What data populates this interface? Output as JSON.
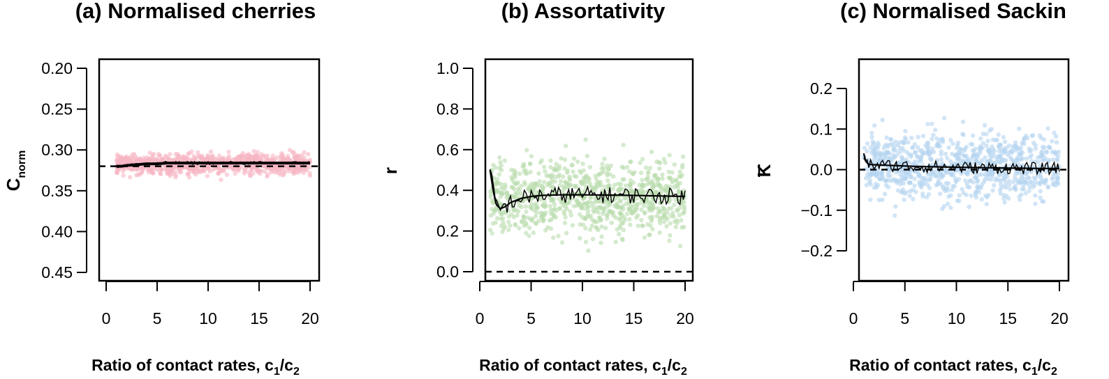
{
  "colors": {
    "panel_a_points": "#f7b6c3",
    "panel_b_points": "#b9dcae",
    "panel_c_points": "#b4d3f0",
    "lines": "#000000"
  },
  "chart_data": [
    {
      "type": "scatter",
      "title": "(a) Normalised cherries",
      "xlabel": {
        "main": "Ratio of contact rates, c",
        "sub1": "1",
        "slash": "/c",
        "sub2": "2"
      },
      "ylabel": {
        "main": "C",
        "sub": "norm"
      },
      "xlim": [
        0,
        20
      ],
      "ylim": [
        0.2,
        0.45
      ],
      "xticks": [
        "0",
        "5",
        "10",
        "15",
        "20"
      ],
      "yticks": [
        "0.20",
        "0.25",
        "0.30",
        "0.35",
        "0.40",
        "0.45"
      ],
      "reference_line": 0.33,
      "scatter": {
        "center": 0.333,
        "spread": 0.009,
        "n": 900
      },
      "mean_curve": {
        "x": [
          1,
          1.5,
          2,
          3,
          4,
          5,
          6,
          8,
          10,
          12,
          15,
          18,
          20
        ],
        "y": [
          0.33,
          0.33,
          0.331,
          0.332,
          0.333,
          0.333,
          0.334,
          0.334,
          0.334,
          0.334,
          0.334,
          0.334,
          0.334
        ]
      },
      "noisy_amplitude": 0.002
    },
    {
      "type": "scatter",
      "title": "(b) Assortativity",
      "xlabel": {
        "main": "Ratio of contact rates, c",
        "sub1": "1",
        "slash": "/c",
        "sub2": "2"
      },
      "ylabel": {
        "main": "r",
        "sub": ""
      },
      "xlim": [
        0,
        20
      ],
      "ylim": [
        0,
        1
      ],
      "xticks": [
        "0",
        "5",
        "10",
        "15",
        "20"
      ],
      "yticks": [
        "0.0",
        "0.2",
        "0.4",
        "0.6",
        "0.8",
        "1.0"
      ],
      "reference_line": 0,
      "scatter": {
        "center": 0.37,
        "spread": 0.13,
        "n": 900
      },
      "mean_curve": {
        "x": [
          1,
          1.3,
          1.6,
          2,
          2.5,
          3,
          4,
          5,
          6,
          8,
          10,
          12,
          15,
          18,
          20
        ],
        "y": [
          0.5,
          0.4,
          0.33,
          0.31,
          0.32,
          0.34,
          0.36,
          0.37,
          0.375,
          0.378,
          0.378,
          0.377,
          0.375,
          0.372,
          0.37
        ]
      },
      "noisy_amplitude": 0.04
    },
    {
      "type": "scatter",
      "title": "(c) Normalised Sackin",
      "xlabel": {
        "main": "Ratio of contact rates, c",
        "sub1": "1",
        "slash": "/c",
        "sub2": "2"
      },
      "ylabel": {
        "main": "K",
        "sub": ""
      },
      "xlim": [
        0,
        20
      ],
      "ylim": [
        -0.27,
        0.27
      ],
      "xticks": [
        "0",
        "5",
        "10",
        "15",
        "20"
      ],
      "yticks": [
        "−0.2",
        "−0.1",
        "0.0",
        "0.1",
        "0.2"
      ],
      "ytick_values": [
        -0.2,
        -0.1,
        0,
        0.1,
        0.2
      ],
      "reference_line": 0,
      "scatter": {
        "center": 0.01,
        "spread": 0.055,
        "n": 900
      },
      "mean_curve": {
        "x": [
          1,
          1.2,
          1.5,
          2,
          3,
          4,
          5,
          6,
          8,
          10,
          12,
          15,
          18,
          20
        ],
        "y": [
          0.04,
          0.02,
          0.013,
          0.012,
          0.011,
          0.01,
          0.009,
          0.008,
          0.007,
          0.006,
          0.005,
          0.004,
          0.003,
          0.003
        ]
      },
      "noisy_amplitude": 0.015
    }
  ]
}
